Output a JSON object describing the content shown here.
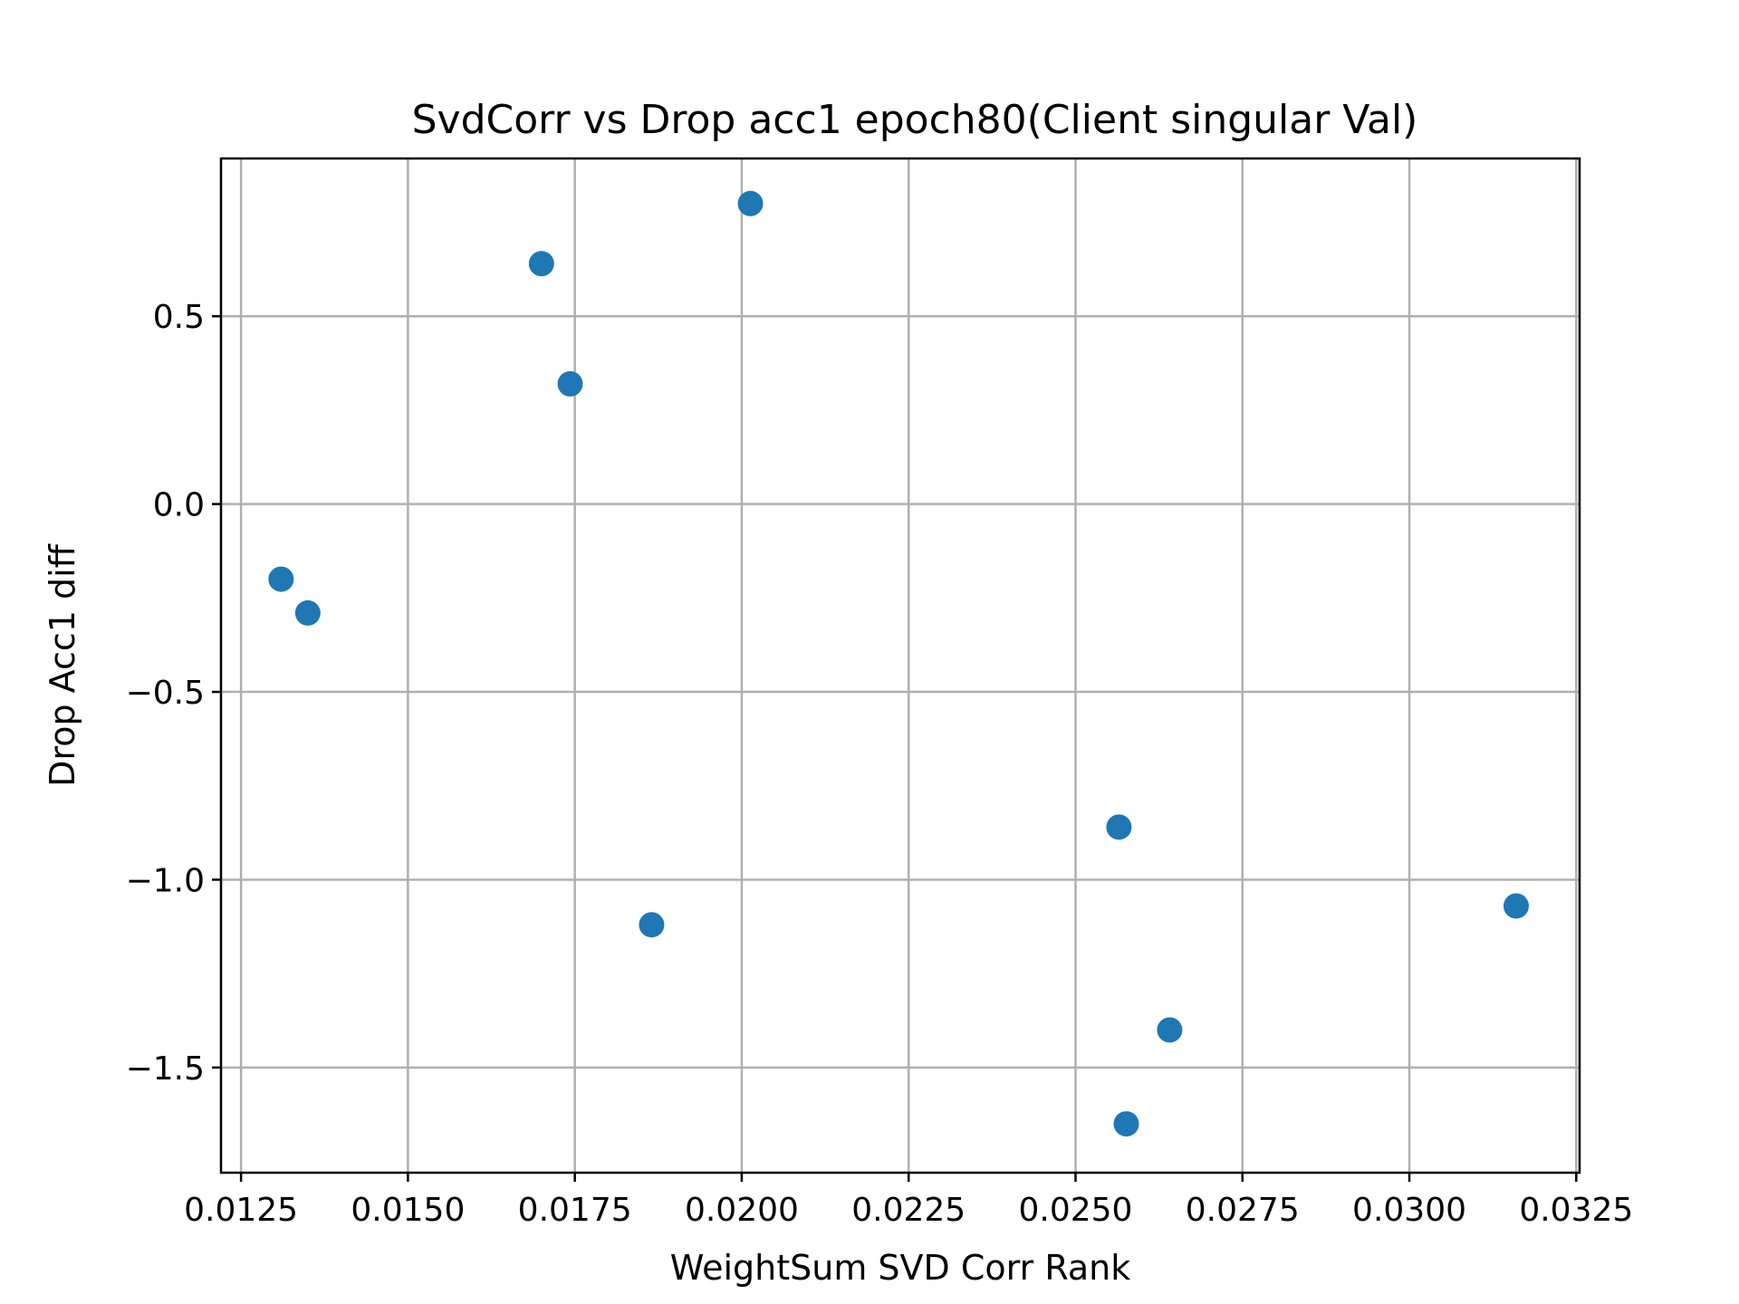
{
  "chart_data": {
    "type": "scatter",
    "title": "SvdCorr vs Drop acc1 epoch80(Client singular Val)",
    "xlabel": "WeightSum SVD Corr Rank",
    "ylabel": "Drop Acc1 diff",
    "xlim": [
      0.0122,
      0.03255
    ],
    "ylim": [
      -1.78,
      0.92
    ],
    "xticks": [
      0.0125,
      0.015,
      0.0175,
      0.02,
      0.0225,
      0.025,
      0.0275,
      0.03,
      0.0325
    ],
    "xtick_labels": [
      "0.0125",
      "0.0150",
      "0.0175",
      "0.0200",
      "0.0225",
      "0.0250",
      "0.0275",
      "0.0300",
      "0.0325"
    ],
    "yticks": [
      0.5,
      0.0,
      -0.5,
      -1.0,
      -1.5
    ],
    "ytick_labels": [
      "0.5",
      "0.0",
      "−0.5",
      "−1.0",
      "−1.5"
    ],
    "grid": true,
    "color": "#1f77b4",
    "points": [
      {
        "x": 0.0131,
        "y": -0.2
      },
      {
        "x": 0.0135,
        "y": -0.29
      },
      {
        "x": 0.017,
        "y": 0.64
      },
      {
        "x": 0.01743,
        "y": 0.32
      },
      {
        "x": 0.01865,
        "y": -1.12
      },
      {
        "x": 0.02013,
        "y": 0.8
      },
      {
        "x": 0.02565,
        "y": -0.86
      },
      {
        "x": 0.02576,
        "y": -1.65
      },
      {
        "x": 0.02641,
        "y": -1.4
      },
      {
        "x": 0.0316,
        "y": -1.07
      }
    ]
  }
}
